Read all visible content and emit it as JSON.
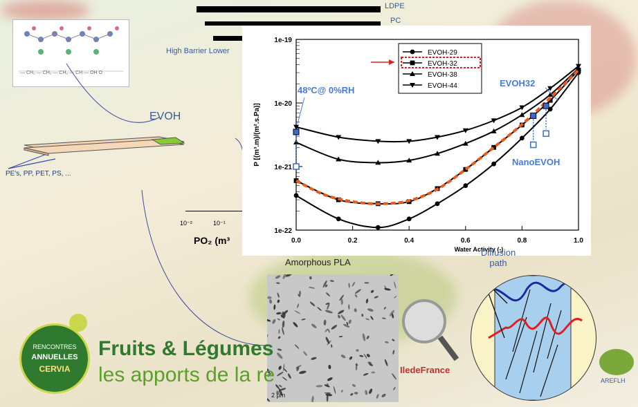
{
  "top_legend": {
    "ldpe": "LDPE",
    "pc": "PC"
  },
  "high_barrier_label": "High Barrier Lower",
  "evoh_label": "EVOH",
  "substrates_label": "PE's, PP, PET, PS, ...",
  "po2_axis": {
    "tick1": "10⁻²",
    "tick2": "10⁻¹",
    "label": "PO₂ (m³"
  },
  "logo": {
    "rencontres_line1": "RENCONTRES",
    "rencontres_line2": "ANNUELLES",
    "city": "CERVIA",
    "brand": "Fruits & Légumes",
    "tagline": "les apports de la re"
  },
  "amorphous_label": "Amorphous PLA",
  "scale_bar": "2 µm",
  "idf_logo": "IledeFrance",
  "diffusion_label": "Diffusion path",
  "arefh_logo": "AREFLH",
  "annotations": {
    "temp": "48ºC@ 0%RH",
    "evoh32": "EVOH32",
    "nano": "NanoEVOH",
    "water_activity": "Water Activity (-)"
  },
  "chart_data": {
    "type": "line",
    "ylabel": "P [(m³.m)/(m².s.Pa)]",
    "xlabel": "Water Activity (-)",
    "y_scale": "log",
    "ylim": [
      1e-22,
      1e-19
    ],
    "xlim": [
      0.0,
      1.0
    ],
    "xticks": [
      "0.0",
      "0.2",
      "0.4",
      "0.6",
      "0.8",
      "1.0"
    ],
    "yticks": [
      "1e-19",
      "1e-20",
      "1e-21",
      "1e-22"
    ],
    "legend_position": "top-center",
    "series": [
      {
        "name": "EVOH-29",
        "marker": "circle",
        "x": [
          0.0,
          0.15,
          0.29,
          0.4,
          0.5,
          0.6,
          0.7,
          0.8,
          0.9,
          1.0
        ],
        "y": [
          3.5e-22,
          1.5e-22,
          1.1e-22,
          1.5e-22,
          2.6e-22,
          5e-22,
          1.1e-21,
          2.8e-21,
          8e-21,
          3e-20
        ]
      },
      {
        "name": "EVOH-32",
        "marker": "square",
        "x": [
          0.0,
          0.15,
          0.29,
          0.4,
          0.5,
          0.6,
          0.7,
          0.8,
          0.9,
          1.0
        ],
        "y": [
          6e-22,
          3e-22,
          2.6e-22,
          2.8e-22,
          4.5e-22,
          9e-22,
          2e-21,
          4.5e-21,
          1.1e-20,
          3.3e-20
        ]
      },
      {
        "name": "EVOH-38",
        "marker": "triangle-up",
        "x": [
          0.0,
          0.15,
          0.29,
          0.4,
          0.5,
          0.6,
          0.7,
          0.8,
          0.9,
          1.0
        ],
        "y": [
          2.4e-21,
          1.3e-21,
          1.15e-21,
          1.25e-21,
          1.6e-21,
          2.3e-21,
          3.6e-21,
          6.5e-21,
          1.35e-20,
          3.5e-20
        ]
      },
      {
        "name": "EVOH-44",
        "marker": "triangle-down",
        "x": [
          0.0,
          0.15,
          0.29,
          0.4,
          0.5,
          0.6,
          0.7,
          0.8,
          0.9,
          1.0
        ],
        "y": [
          4.2e-21,
          2.9e-21,
          2.5e-21,
          2.5e-21,
          2.9e-21,
          3.7e-21,
          5.3e-21,
          8.5e-21,
          1.7e-20,
          3.8e-20
        ]
      }
    ],
    "fit_line": {
      "color": "#ee5a1a",
      "x": [
        0.0,
        0.1,
        0.2,
        0.3,
        0.4,
        0.5,
        0.6,
        0.7,
        0.8,
        0.9,
        1.0
      ],
      "y": [
        6e-22,
        3.6e-22,
        2.8e-22,
        2.6e-22,
        2.9e-22,
        4.4e-22,
        9e-22,
        2e-21,
        4.6e-21,
        1.2e-20,
        3.3e-20
      ]
    },
    "evoh32_points": {
      "x": [
        0.0,
        0.84,
        0.885
      ],
      "y": [
        3.5e-21,
        6.3e-21,
        9e-21
      ]
    },
    "nano_points": {
      "x": [
        0.0,
        0.84,
        0.885
      ],
      "y": [
        1e-21,
        2.2e-21,
        3.3e-21
      ]
    },
    "colors": {
      "markers": "#3a6ad0",
      "fit": "#ee5a1a",
      "highlight_box": "#e02020"
    }
  }
}
